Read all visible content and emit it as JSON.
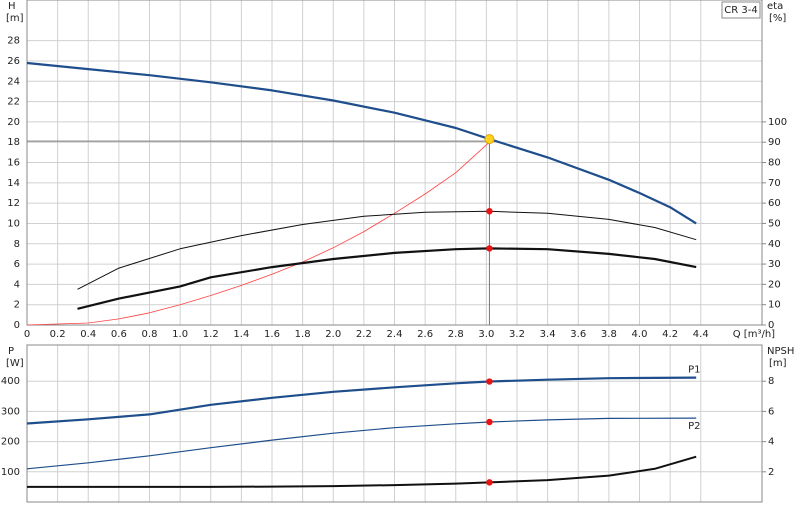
{
  "chart_data": [
    {
      "type": "line",
      "label": "CR 3-4",
      "ylabel": "H",
      "yunit": "[m]",
      "y2label": "eta",
      "y2unit": "[%]",
      "xlabel": "Q [m³/h]",
      "xlim": [
        0,
        4.8
      ],
      "ylim": [
        0,
        32
      ],
      "y2lim": [
        0,
        160
      ],
      "grid": true,
      "xticks": [
        0,
        0.2,
        0.4,
        0.6,
        0.8,
        {
          "value": 1,
          "label": "1.0"
        },
        1.2,
        1.4,
        1.6,
        1.8,
        {
          "value": 2,
          "label": "2.0"
        },
        2.2,
        2.4,
        2.6,
        2.8,
        {
          "value": 3,
          "label": "3.0"
        },
        3.2,
        3.4,
        3.6,
        3.8,
        {
          "value": 4,
          "label": "4.0"
        },
        4.2,
        4.4
      ],
      "yticks": [
        0,
        2,
        4,
        6,
        8,
        10,
        12,
        14,
        16,
        18,
        20,
        22,
        24,
        26,
        28
      ],
      "y2ticks": [
        0,
        10,
        20,
        30,
        40,
        50,
        60,
        70,
        80,
        90,
        100
      ],
      "series": [
        {
          "color": "#1f4e8c",
          "width": 2.2,
          "x": [
            0,
            0.4,
            0.8,
            1.2,
            1.6,
            2.0,
            2.4,
            2.8,
            3.02,
            3.4,
            3.8,
            4.0,
            4.2,
            4.37
          ],
          "values": [
            25.8,
            25.2,
            24.6,
            23.9,
            23.1,
            22.1,
            20.9,
            19.4,
            18.3,
            16.5,
            14.3,
            13.0,
            11.6,
            10.0
          ]
        },
        {
          "color": "#ff4040",
          "width": 0.8,
          "axis": "y2",
          "x": [
            0,
            0.4,
            0.6,
            0.8,
            1.0,
            1.2,
            1.4,
            1.6,
            1.8,
            2.0,
            2.2,
            2.4,
            2.6,
            2.8,
            3.02
          ],
          "values": [
            0,
            1,
            3,
            6,
            10,
            14.5,
            19.5,
            25,
            31,
            38,
            46,
            55,
            64.5,
            75,
            90
          ]
        },
        {
          "color": "#111111",
          "width": 1,
          "axis": "y2",
          "x": [
            0.33,
            0.6,
            1.0,
            1.4,
            1.8,
            2.2,
            2.6,
            3.02,
            3.4,
            3.8,
            4.1,
            4.37
          ],
          "values": [
            17.6,
            28,
            37.5,
            44,
            49.5,
            53.5,
            55.5,
            56,
            55,
            52,
            48,
            42
          ]
        },
        {
          "color": "#111111",
          "width": 2.2,
          "axis": "y2",
          "x": [
            0.33,
            0.6,
            1.0,
            1.2,
            1.6,
            2.0,
            2.4,
            2.8,
            3.02,
            3.4,
            3.8,
            4.1,
            4.37
          ],
          "values": [
            8,
            13,
            19,
            23.5,
            28.5,
            32.5,
            35.5,
            37.3,
            37.7,
            37.3,
            35,
            32.5,
            28.5
          ]
        }
      ],
      "duty_point": {
        "x": 3.02,
        "y": 18.1
      },
      "markers": [
        {
          "x": 3.02,
          "y": 18.3,
          "color": "#ffd21f"
        },
        {
          "x": 3.02,
          "y": 56,
          "color": "#ee1111",
          "axis": "y2"
        },
        {
          "x": 3.02,
          "y": 37.7,
          "color": "#ee1111",
          "axis": "y2"
        }
      ]
    },
    {
      "type": "line",
      "ylabel": "P",
      "yunit": "[W]",
      "y2label": "NPSH",
      "y2unit": "[m]",
      "xlim": [
        0,
        4.8
      ],
      "ylim": [
        0,
        520
      ],
      "y2lim": [
        0,
        10.4
      ],
      "grid": true,
      "xticks": [
        0,
        0.2,
        0.4,
        0.6,
        0.8,
        1,
        1.2,
        1.4,
        1.6,
        1.8,
        2,
        2.2,
        2.4,
        2.6,
        2.8,
        3,
        3.2,
        3.4,
        3.6,
        3.8,
        4,
        4.2,
        4.4
      ],
      "yticks": [
        100,
        200,
        300,
        400
      ],
      "y2ticks": [
        2,
        4,
        6,
        8
      ],
      "series": [
        {
          "name": "P1",
          "color": "#1f4e8c",
          "width": 2.2,
          "x": [
            0,
            0.4,
            0.8,
            1.2,
            1.6,
            2.0,
            2.4,
            2.8,
            3.02,
            3.4,
            3.8,
            4.37
          ],
          "values": [
            260,
            274,
            290,
            322,
            345,
            365,
            380,
            393,
            399,
            405,
            410,
            412
          ]
        },
        {
          "name": "P2",
          "color": "#1f4e8c",
          "width": 1.2,
          "x": [
            0,
            0.4,
            0.8,
            1.2,
            1.6,
            2.0,
            2.4,
            2.8,
            3.02,
            3.4,
            3.8,
            4.37
          ],
          "values": [
            110,
            130,
            153,
            180,
            205,
            228,
            246,
            259,
            265,
            272,
            277,
            278
          ]
        },
        {
          "color": "#111111",
          "width": 2,
          "axis": "y2",
          "x": [
            0,
            0.4,
            0.8,
            1.2,
            1.6,
            2.0,
            2.4,
            2.8,
            3.02,
            3.4,
            3.8,
            4.1,
            4.37
          ],
          "values": [
            1.0,
            1.0,
            1.0,
            1.0,
            1.02,
            1.05,
            1.12,
            1.22,
            1.3,
            1.45,
            1.75,
            2.2,
            3.0
          ]
        }
      ],
      "markers": [
        {
          "x": 3.02,
          "y": 399,
          "color": "#ee1111"
        },
        {
          "x": 3.02,
          "y": 265,
          "color": "#ee1111"
        },
        {
          "x": 3.02,
          "y": 1.3,
          "color": "#ee1111",
          "axis": "y2"
        }
      ]
    }
  ]
}
